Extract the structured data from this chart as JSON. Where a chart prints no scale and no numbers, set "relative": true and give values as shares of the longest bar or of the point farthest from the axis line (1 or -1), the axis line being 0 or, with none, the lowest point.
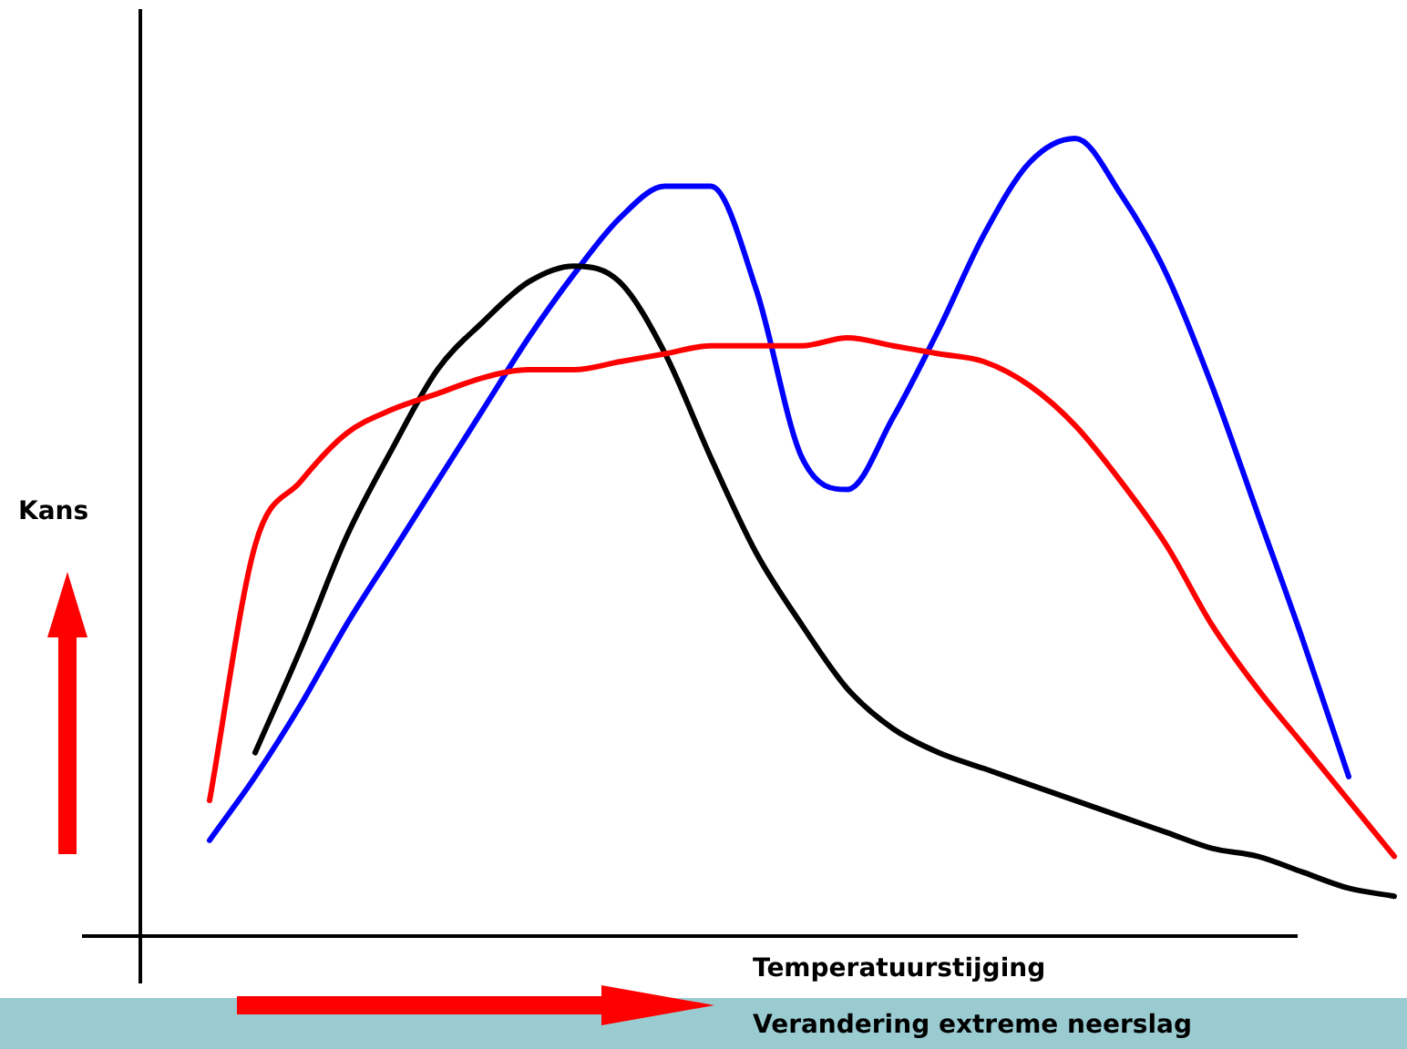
{
  "chart_data": {
    "type": "line",
    "relative": true,
    "ylabel": "Kans",
    "xlabel": "Temperatuurstijging",
    "annotations": [
      "Verandering extreme neerslag"
    ],
    "categories": [
      null,
      null,
      null,
      null,
      null,
      null,
      null,
      null,
      null,
      null,
      null,
      null,
      null,
      null,
      null,
      null,
      null,
      null,
      null,
      null,
      null,
      null,
      null,
      null,
      null,
      null,
      null
    ],
    "series": [
      {
        "color": "#ff0000",
        "values": [
          0.17,
          0.49,
          0.57,
          0.63,
          0.66,
          0.68,
          0.7,
          0.71,
          0.71,
          0.72,
          0.73,
          0.74,
          0.74,
          0.74,
          0.75,
          0.74,
          0.73,
          0.72,
          0.69,
          0.64,
          0.57,
          0.49,
          0.39,
          0.31,
          0.24,
          0.17,
          0.1
        ]
      },
      {
        "color": "#000000",
        "values": [
          null,
          0.23,
          0.36,
          0.5,
          0.61,
          0.71,
          0.77,
          0.82,
          0.84,
          0.82,
          0.73,
          0.6,
          0.48,
          0.39,
          0.31,
          0.26,
          0.23,
          0.21,
          0.19,
          0.17,
          0.15,
          0.13,
          0.11,
          0.1,
          0.08,
          0.06,
          0.05
        ]
      },
      {
        "color": "#0000ff",
        "values": [
          0.12,
          0.2,
          0.29,
          0.39,
          0.48,
          0.57,
          0.66,
          0.75,
          0.83,
          0.9,
          0.94,
          0.94,
          0.81,
          0.6,
          0.56,
          0.65,
          0.76,
          0.88,
          0.97,
          1.0,
          0.93,
          0.83,
          0.69,
          0.53,
          0.37,
          0.2,
          null
        ]
      }
    ],
    "tick_labels": false
  }
}
